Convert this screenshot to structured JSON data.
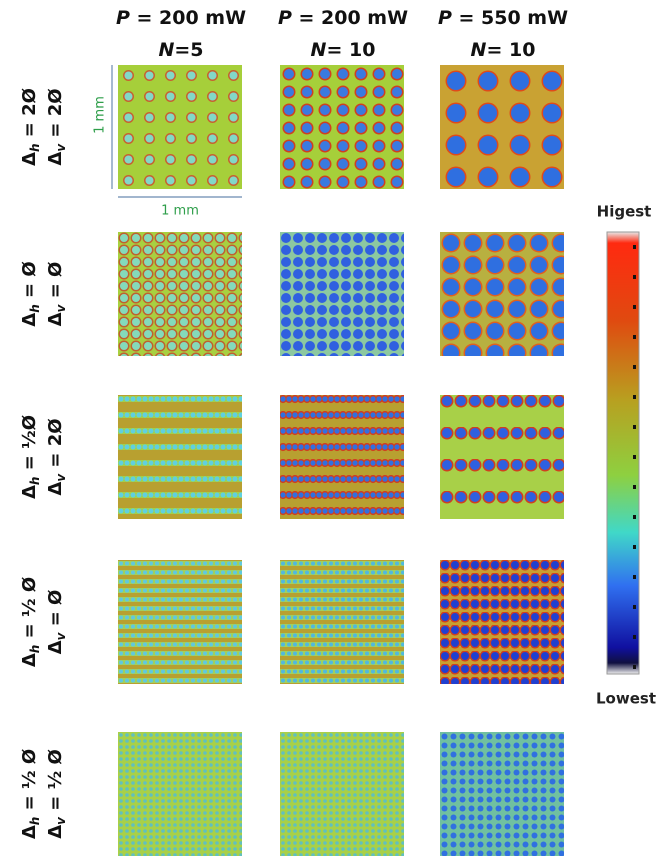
{
  "columns": [
    {
      "power": {
        "symbol": "P",
        "text": " = 200 mW"
      },
      "pulses": {
        "symbol": "N",
        "text": "=5"
      }
    },
    {
      "power": {
        "symbol": "P",
        "text": " = 200 mW"
      },
      "pulses": {
        "symbol": "N",
        "text": "= 10"
      }
    },
    {
      "power": {
        "symbol": "P",
        "text": " = 550 mW"
      },
      "pulses": {
        "symbol": "N",
        "text": "= 10"
      }
    }
  ],
  "rows": [
    {
      "h": {
        "symbol": "Δ",
        "sub": "h",
        "text": " = 2Ø"
      },
      "v": {
        "symbol": "Δ",
        "sub": "v",
        "text": " = 2Ø"
      }
    },
    {
      "h": {
        "symbol": "Δ",
        "sub": "h",
        "text": " = Ø"
      },
      "v": {
        "symbol": "Δ",
        "sub": "v",
        "text": " = Ø"
      }
    },
    {
      "h": {
        "symbol": "Δ",
        "sub": "h",
        "text": " = ½Ø"
      },
      "v": {
        "symbol": "Δ",
        "sub": "v",
        "text": " = 2Ø"
      }
    },
    {
      "h": {
        "symbol": "Δ",
        "sub": "h",
        "text": " = ½ Ø"
      },
      "v": {
        "symbol": "Δ",
        "sub": "v",
        "text": " = Ø"
      }
    },
    {
      "h": {
        "symbol": "Δ",
        "sub": "h",
        "text": " = ½ Ø"
      },
      "v": {
        "symbol": "Δ",
        "sub": "v",
        "text": " = ½ Ø"
      }
    }
  ],
  "scale": {
    "vertical": "1 mm",
    "horizontal": "1 mm"
  },
  "colorbar": {
    "top": "Higest",
    "bottom": "Lowest"
  }
}
